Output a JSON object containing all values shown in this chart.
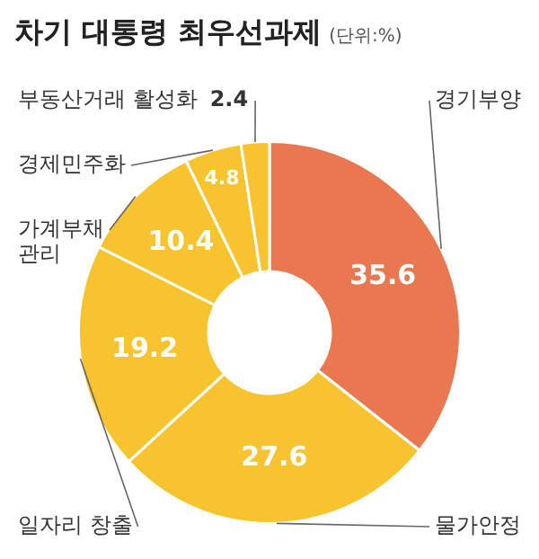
{
  "chart_data": {
    "type": "donut",
    "title": "차기 대통령 최우선과제",
    "subtitle": "(단위:%)",
    "categories": [
      "경기부양",
      "물가안정",
      "일자리 창출",
      "가계부채 관리",
      "경제민주화",
      "부동산거래 활성화"
    ],
    "values": [
      35.6,
      27.6,
      19.2,
      10.4,
      4.8,
      2.4
    ],
    "colors": [
      "#e9774f",
      "#f7c430",
      "#f7c430",
      "#f7c430",
      "#f7c430",
      "#f7c430"
    ],
    "data_labels": true,
    "legend": false
  }
}
